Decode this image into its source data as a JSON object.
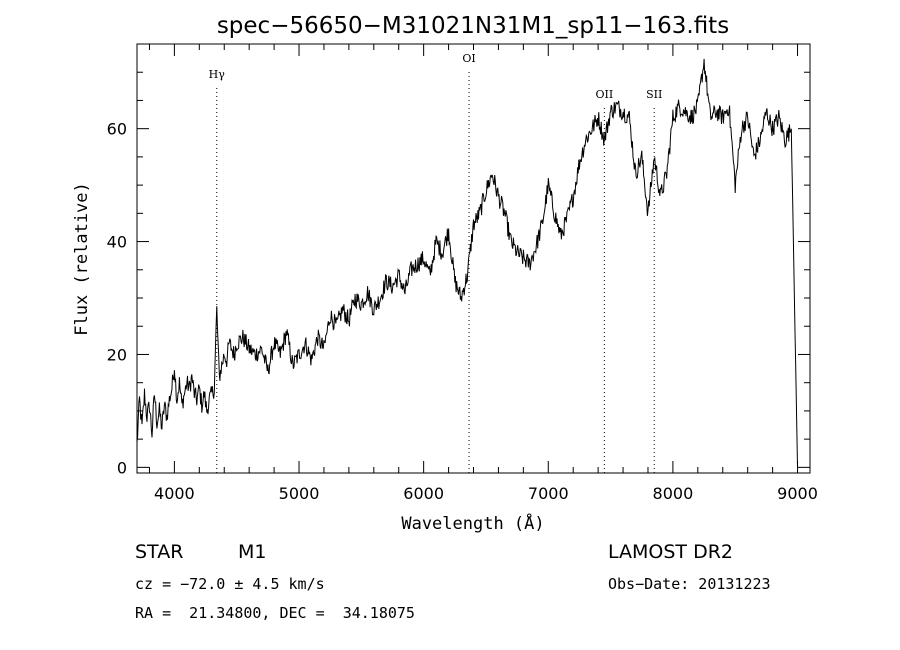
{
  "chart_data": {
    "type": "line",
    "title": "spec−56650−M31021N31M1_sp11−163.fits",
    "xlabel": "Wavelength (Å)",
    "ylabel": "Flux (relative)",
    "xlim": [
      3700,
      9100
    ],
    "ylim": [
      -1,
      75
    ],
    "xticks": [
      4000,
      5000,
      6000,
      7000,
      8000,
      9000
    ],
    "yticks": [
      0,
      20,
      40,
      60
    ],
    "grid": false,
    "series": [
      {
        "x": [
          3700,
          3720,
          3740,
          3760,
          3780,
          3800,
          3820,
          3840,
          3860,
          3880,
          3900,
          3920,
          3940,
          3960,
          3980,
          4000,
          4020,
          4040,
          4060,
          4080,
          4100,
          4120,
          4140,
          4160,
          4180,
          4200,
          4220,
          4240,
          4260,
          4280,
          4300,
          4320,
          4340,
          4360,
          4380,
          4400,
          4420,
          4440,
          4460,
          4480,
          4500,
          4550,
          4600,
          4650,
          4700,
          4750,
          4800,
          4850,
          4900,
          4950,
          5000,
          5050,
          5100,
          5150,
          5200,
          5250,
          5300,
          5350,
          5400,
          5450,
          5500,
          5550,
          5600,
          5650,
          5700,
          5750,
          5800,
          5850,
          5900,
          5950,
          6000,
          6050,
          6100,
          6150,
          6200,
          6250,
          6300,
          6350,
          6400,
          6450,
          6500,
          6550,
          6600,
          6650,
          6700,
          6750,
          6800,
          6850,
          6900,
          6950,
          7000,
          7050,
          7100,
          7150,
          7200,
          7250,
          7300,
          7350,
          7400,
          7450,
          7500,
          7550,
          7600,
          7650,
          7700,
          7750,
          7800,
          7850,
          7900,
          7950,
          8000,
          8050,
          8100,
          8150,
          8200,
          8250,
          8300,
          8350,
          8400,
          8450,
          8500,
          8550,
          8600,
          8650,
          8700,
          8750,
          8800,
          8850,
          8900,
          8950,
          9000
        ],
        "y": [
          4,
          12,
          7,
          13,
          9,
          11,
          6,
          13,
          8,
          10,
          7,
          11,
          9,
          12,
          14,
          18,
          12,
          15,
          11,
          13,
          15,
          14,
          16,
          13,
          12,
          14,
          11,
          13,
          10,
          12,
          13,
          14,
          28,
          16,
          18,
          20,
          19,
          22,
          21,
          20,
          22,
          23,
          21,
          20,
          21,
          17,
          22,
          20,
          24,
          18,
          20,
          22,
          19,
          23,
          21,
          27,
          25,
          28,
          26,
          30,
          29,
          31,
          28,
          30,
          33,
          32,
          34,
          31,
          35,
          36,
          37,
          34,
          40,
          38,
          42,
          33,
          30,
          34,
          43,
          45,
          49,
          52,
          48,
          45,
          40,
          38,
          37,
          36,
          39,
          43,
          50,
          45,
          41,
          44,
          48,
          54,
          58,
          60,
          62,
          58,
          63,
          64,
          63,
          62,
          52,
          55,
          45,
          55,
          48,
          52,
          62,
          64,
          63,
          62,
          64,
          72,
          62,
          63,
          62,
          64,
          50,
          60,
          62,
          55,
          58,
          63,
          60,
          62,
          58,
          60,
          0
        ]
      }
    ],
    "annotations": [
      {
        "label": "Hγ",
        "x": 4340
      },
      {
        "label": "OI",
        "x": 6364
      },
      {
        "label": "OII",
        "x": 7450
      },
      {
        "label": "SII",
        "x": 7850
      }
    ]
  },
  "info": {
    "object_class": "STAR",
    "subclass": "M1",
    "cz": "cz = −72.0 ± 4.5 km/s",
    "radec": "RA =  21.34800, DEC =  34.18075",
    "survey": "LAMOST DR2",
    "obs_date": "Obs−Date: 20131223"
  }
}
